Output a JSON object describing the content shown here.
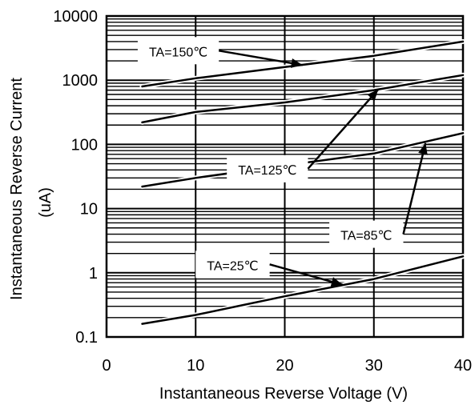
{
  "chart_data": {
    "type": "line",
    "xlabel": "Instantaneous Reverse Voltage (V)",
    "ylabel_line1": "Instantaneous Reverse Current",
    "ylabel_line2": "(uA)",
    "xlim": [
      0,
      40
    ],
    "ylim": [
      0.1,
      10000
    ],
    "y_scale": "log",
    "grid": true,
    "x_ticks": [
      0,
      10,
      20,
      30,
      40
    ],
    "x_tick_labels": [
      "0",
      "10",
      "20",
      "30",
      "40"
    ],
    "y_ticks": [
      0.1,
      1,
      10,
      100,
      1000,
      10000
    ],
    "y_tick_labels": [
      "0.1",
      "1",
      "10",
      "100",
      "1000",
      "10000"
    ],
    "series": [
      {
        "name": "TA=150℃",
        "x": [
          4,
          10,
          20,
          30,
          40
        ],
        "y": [
          800,
          1070,
          1600,
          2400,
          4000
        ]
      },
      {
        "name": "TA=125℃",
        "x": [
          4,
          10,
          20,
          30,
          40
        ],
        "y": [
          220,
          320,
          450,
          700,
          1200
        ]
      },
      {
        "name": "TA=85℃",
        "x": [
          4,
          10,
          20,
          30,
          40
        ],
        "y": [
          22,
          30,
          47,
          72,
          150
        ]
      },
      {
        "name": "TA=25℃",
        "x": [
          4,
          10,
          20,
          30,
          40
        ],
        "y": [
          0.16,
          0.22,
          0.43,
          0.8,
          1.8
        ]
      }
    ],
    "annotations": [
      {
        "text": "TA=150℃",
        "box_x": 3.5,
        "box_y": 4700,
        "arrow_to_x": 22,
        "arrow_to_y": 1720
      },
      {
        "text": "TA=125℃",
        "box_x": 13.5,
        "box_y": 68,
        "arrow_to_x": 30.5,
        "arrow_to_y": 720
      },
      {
        "text": "TA=85℃",
        "box_x": 25.0,
        "box_y": 6.5,
        "arrow_to_x": 35.8,
        "arrow_to_y": 105
      },
      {
        "text": "TA=25℃",
        "box_x": 10.0,
        "box_y": 2.2,
        "arrow_to_x": 26.5,
        "arrow_to_y": 0.65
      }
    ]
  }
}
